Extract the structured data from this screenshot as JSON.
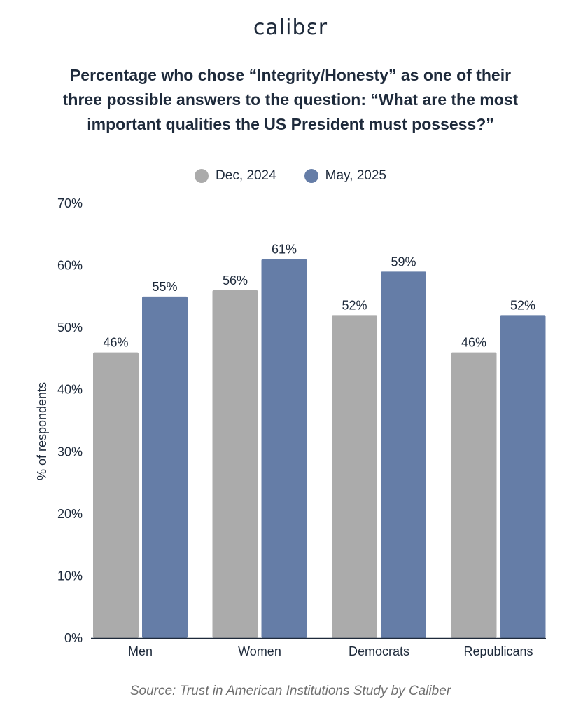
{
  "brand": {
    "logo": "calibɛr"
  },
  "title_lines": [
    "Percentage who chose “Integrity/Honesty” as one of their",
    "three possible answers to the question: “What are the most",
    "important qualities the US President must possess?”"
  ],
  "source": "Source: Trust in American Institutions Study by Caliber",
  "colors": {
    "dec_2024": "#ababab",
    "may_2025": "#657da7",
    "text": "#1e2a3b",
    "axis": "#1e2a3b"
  },
  "chart_data": {
    "type": "bar",
    "categories": [
      "Men",
      "Women",
      "Democrats",
      "Republicans"
    ],
    "series": [
      {
        "name": "Dec, 2024",
        "values": [
          46,
          56,
          52,
          46
        ]
      },
      {
        "name": "May, 2025",
        "values": [
          55,
          61,
          59,
          52
        ]
      }
    ],
    "value_suffix": "%",
    "ylabel": "% of respondents",
    "ylim": [
      0,
      70
    ],
    "yticks": [
      "0%",
      "10%",
      "20%",
      "30%",
      "40%",
      "50%",
      "60%",
      "70%"
    ],
    "grid": false,
    "legend_position": "top-center"
  }
}
